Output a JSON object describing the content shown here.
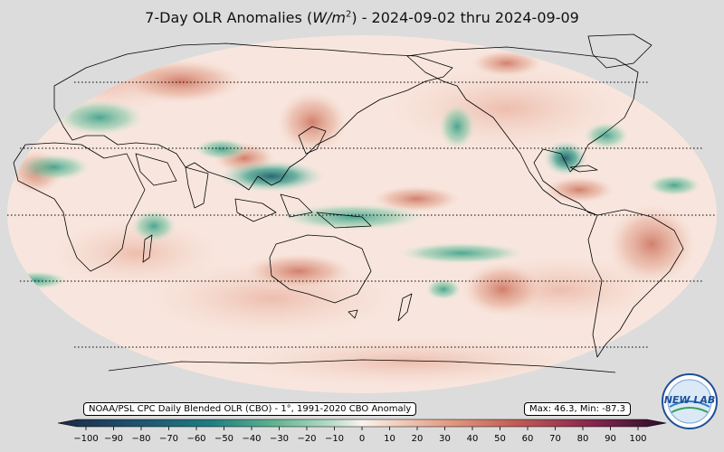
{
  "title": {
    "prefix": "7-Day OLR Anomalies (",
    "unit_base": "W/m",
    "unit_exp": "2",
    "suffix": ") - 2024-09-02 thru 2024-09-09"
  },
  "source_label": "NOAA/PSL CPC Daily Blended OLR (CBO) - 1°, 1991-2020 CBO Anomaly",
  "stats_label": "Max: 46.3,  Min: -87.3",
  "logo": {
    "text": "NEW LAB",
    "icon": "psl-logo-icon"
  },
  "colors": {
    "negative_extreme": "#1a2a45",
    "negative_strong": "#1f6e73",
    "negative_mid": "#2e9b85",
    "negative_weak": "#9fd3b9",
    "neutral": "#fbf3ee",
    "positive_weak": "#f1c5b1",
    "positive_mid": "#d8836c",
    "positive_strong": "#9b3045",
    "positive_extreme": "#2a0c2c",
    "land_outline": "#000000",
    "background": "#dcdcdc"
  },
  "colorbar": {
    "min": -100,
    "max": 100,
    "ticks": [
      "−100",
      "−90",
      "−80",
      "−70",
      "−60",
      "−50",
      "−40",
      "−30",
      "−20",
      "−10",
      "0",
      "10",
      "20",
      "30",
      "40",
      "50",
      "60",
      "70",
      "80",
      "90",
      "100"
    ]
  },
  "map": {
    "projection": "robinson",
    "gridlines": "dotted latitude lines",
    "central_longitude": 150
  }
}
